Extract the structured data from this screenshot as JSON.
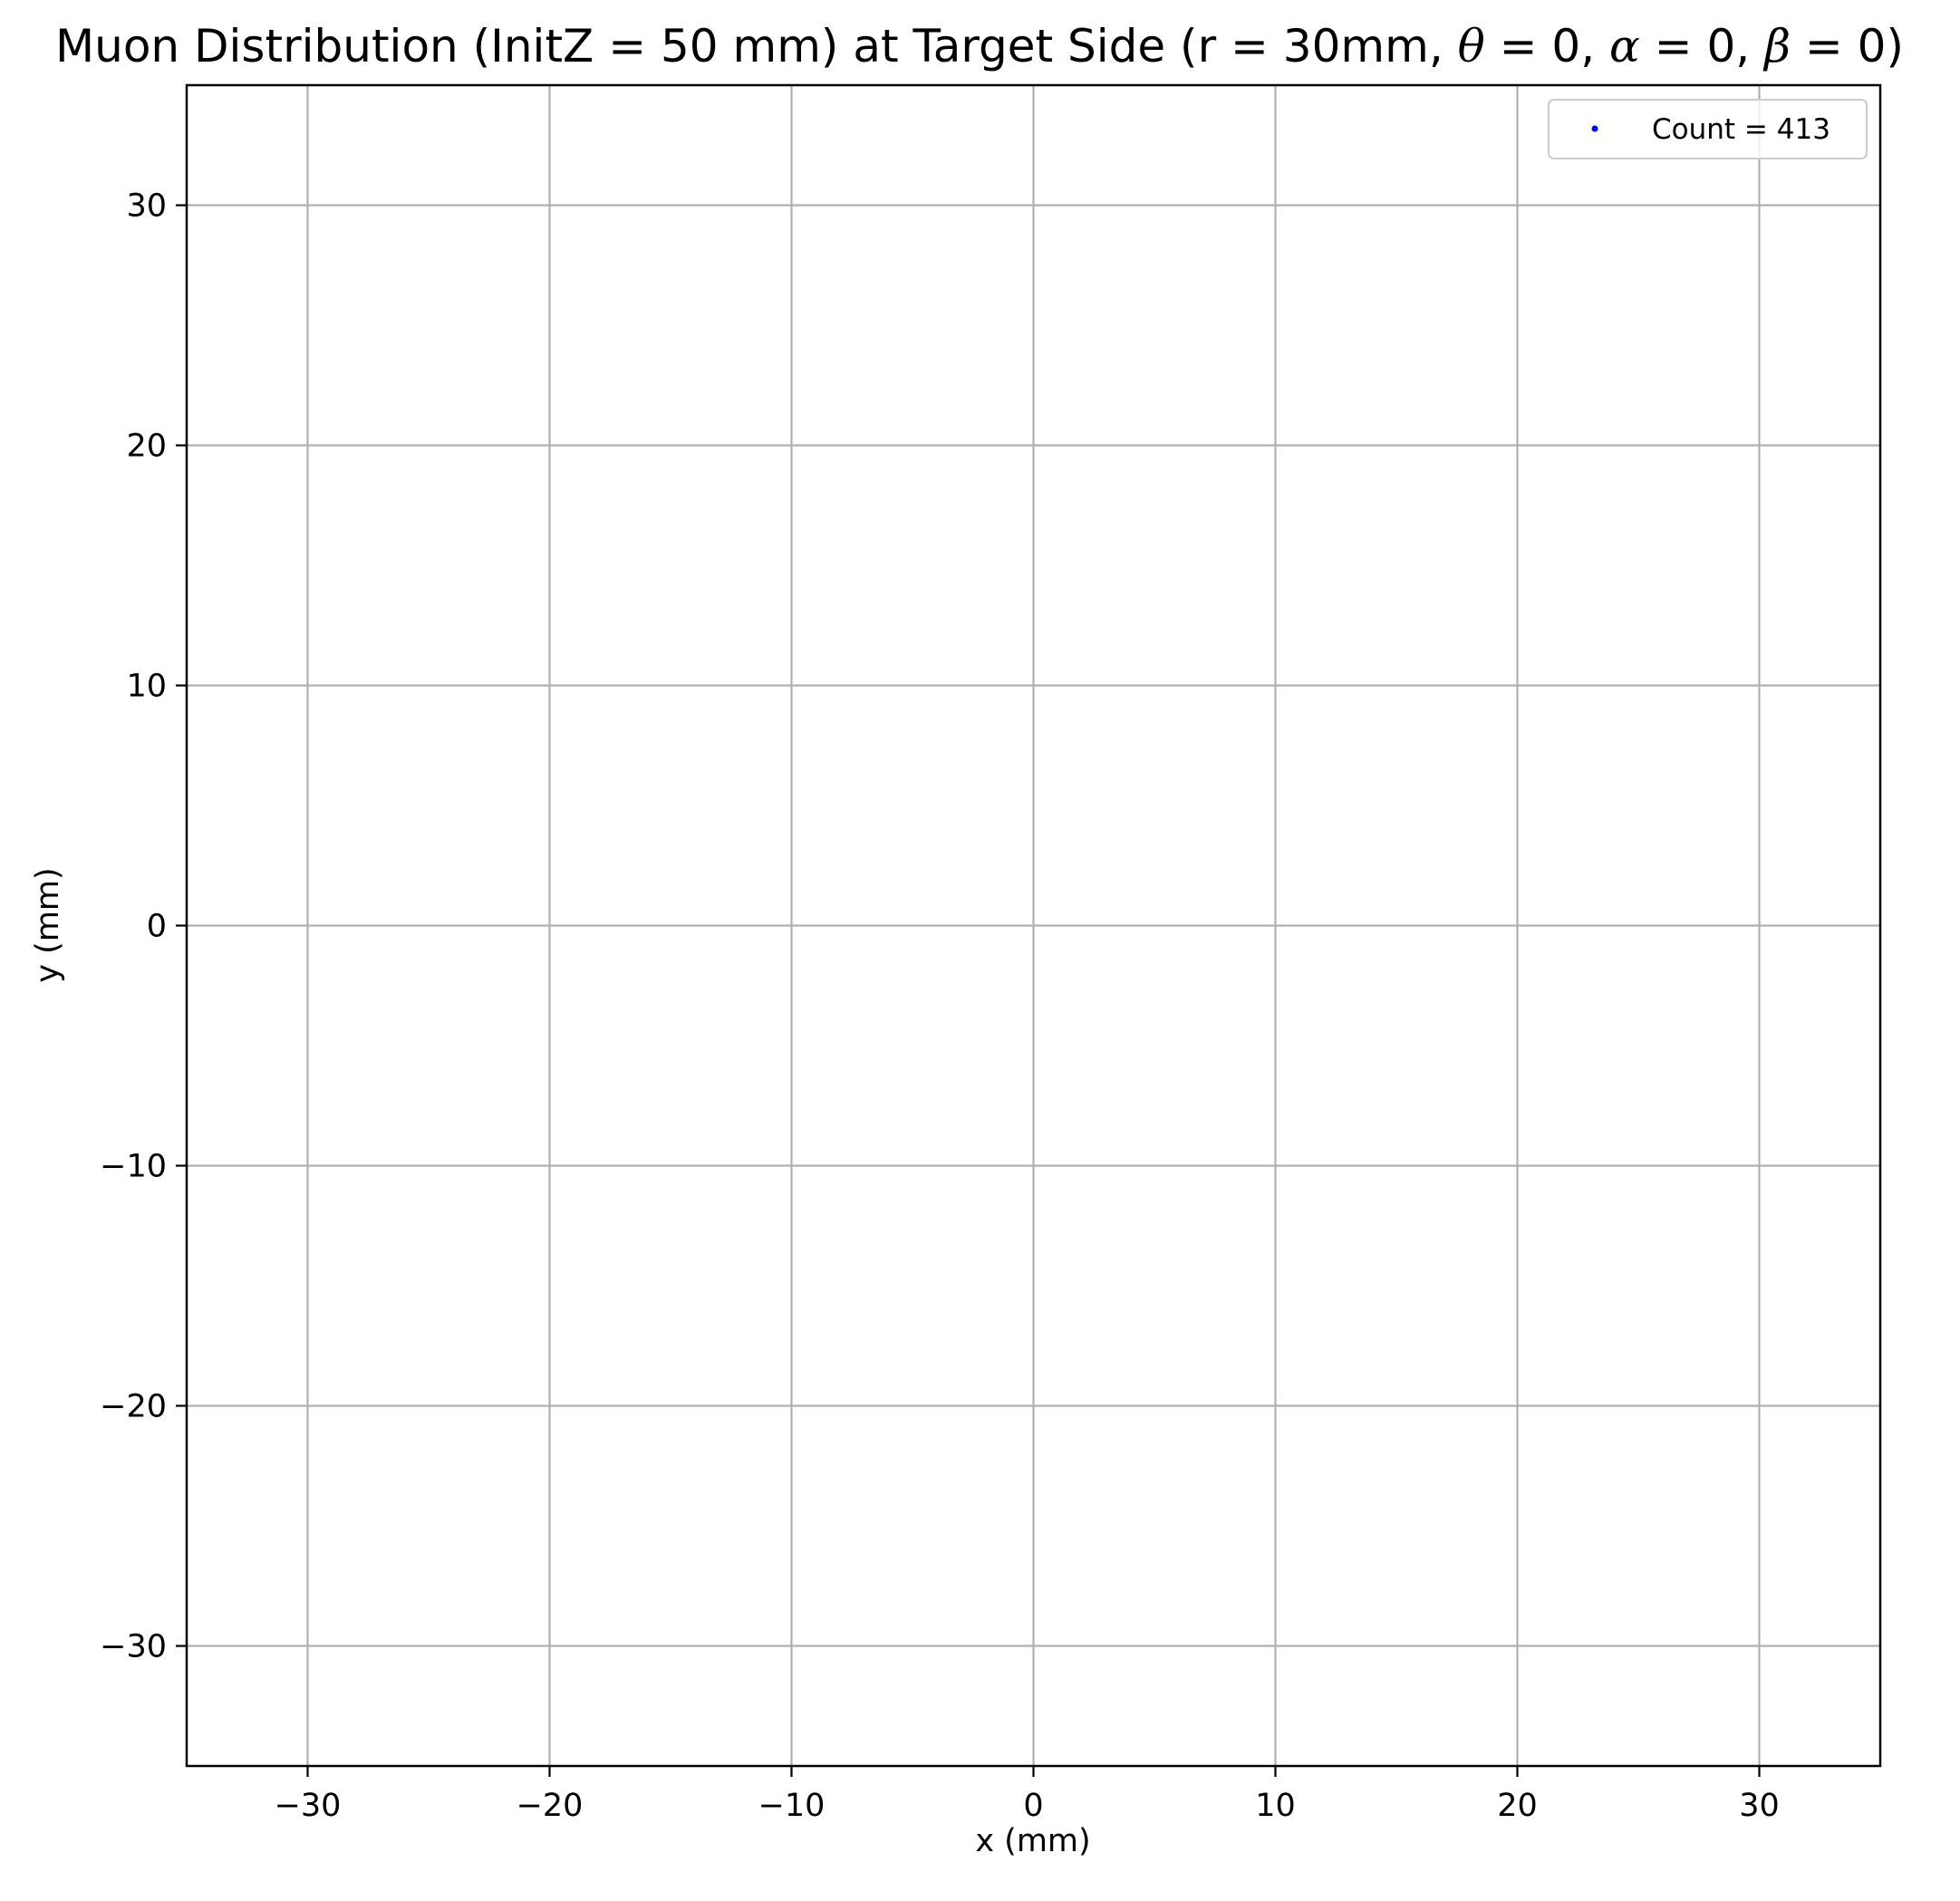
{
  "chart_data": {
    "type": "scatter",
    "title_parts": [
      {
        "text": "Muon Distribution (InitZ = 50 mm) at Target Side (r = 30mm, ",
        "math": false
      },
      {
        "text": "θ",
        "math": true
      },
      {
        "text": " = 0, ",
        "math": false
      },
      {
        "text": "α",
        "math": true
      },
      {
        "text": " = 0, ",
        "math": false
      },
      {
        "text": "β",
        "math": true
      },
      {
        "text": " = 0)",
        "math": false
      }
    ],
    "xlabel": "x (mm)",
    "ylabel": "y (mm)",
    "xlim": [
      -35,
      35
    ],
    "ylim": [
      -35,
      35
    ],
    "xticks": [
      -30,
      -20,
      -10,
      0,
      10,
      20,
      30
    ],
    "yticks": [
      -30,
      -20,
      -10,
      0,
      10,
      20,
      30
    ],
    "xtick_labels": [
      "−30",
      "−20",
      "−10",
      "0",
      "10",
      "20",
      "30"
    ],
    "ytick_labels": [
      "−30",
      "−20",
      "−10",
      "0",
      "10",
      "20",
      "30"
    ],
    "grid": true,
    "legend": {
      "position": "top-right",
      "entries": [
        {
          "label": "Count = 413",
          "color": "#0000ff"
        }
      ]
    },
    "series": [
      {
        "name": "Count = 413",
        "color": "#0000ff",
        "points": []
      }
    ],
    "colors": {
      "axes": "#000000",
      "grid": "#b0b0b0",
      "marker": "#0000ff",
      "background": "#ffffff"
    }
  }
}
